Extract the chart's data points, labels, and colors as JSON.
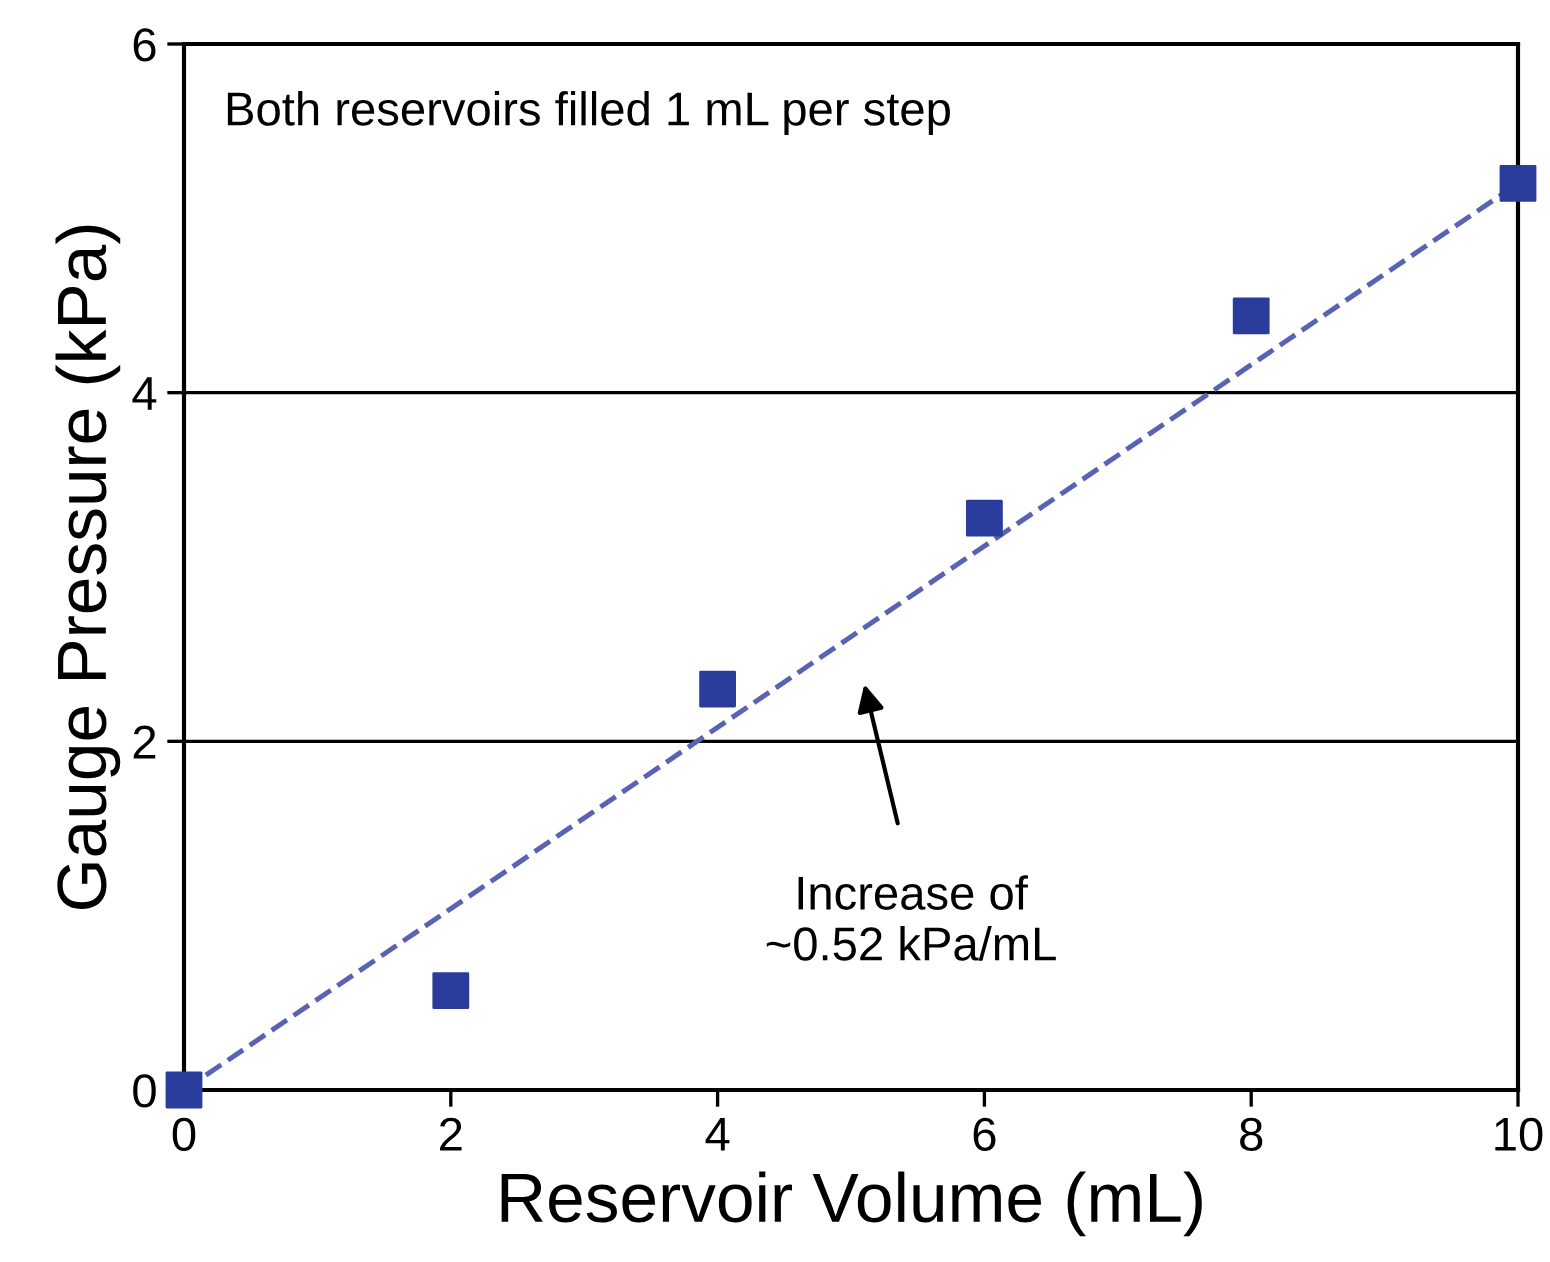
{
  "chart_data": {
    "type": "scatter",
    "xlabel": "Reservoir Volume (mL)",
    "ylabel": "Gauge Pressure (kPa)",
    "series": [
      {
        "color": "#2a3d9c",
        "marker": "square",
        "x": [
          0,
          2,
          4,
          6,
          8,
          10
        ],
        "values": [
          0,
          0.57,
          2.3,
          3.28,
          4.44,
          5.2
        ]
      },
      {
        "type": "line",
        "color": "#5a63b3",
        "line_style": "dashed",
        "marker": "none",
        "x": [
          0,
          10
        ],
        "values": [
          0,
          5.2
        ]
      }
    ],
    "xlim": [
      0,
      10
    ],
    "xticks": [
      0,
      2,
      4,
      6,
      8,
      10
    ],
    "ylim": [
      0,
      6
    ],
    "yticks": [
      0,
      2,
      4,
      6
    ],
    "grid": "y",
    "annotations": [
      "Both reservoirs filled 1 mL per step",
      "Increase of\n~0.52 kPa/mL"
    ]
  }
}
